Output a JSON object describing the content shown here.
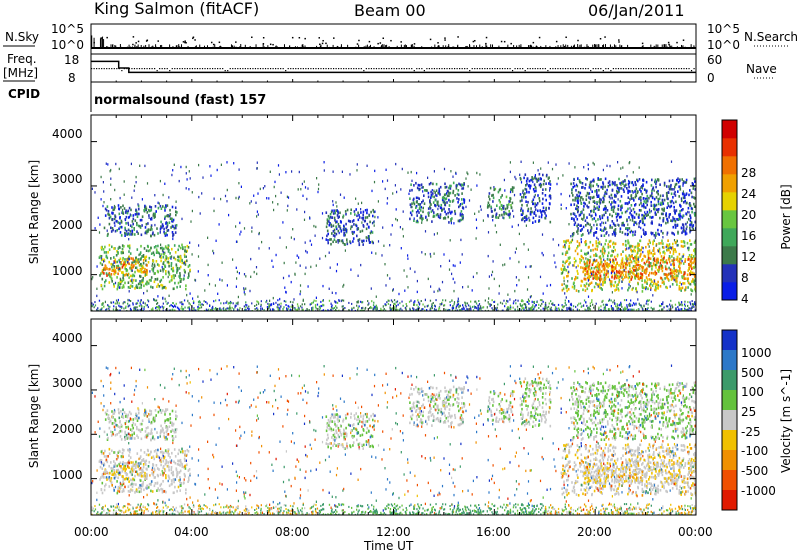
{
  "header": {
    "title": "King Salmon (fitACF)",
    "beam": "Beam 00",
    "date": "06/Jan/2011"
  },
  "noise_panel": {
    "left_label": "N.Sky",
    "right_label": "N.Search",
    "left_ticks": [
      "10^5",
      "10^0"
    ],
    "right_ticks": [
      "10^5",
      "10^0"
    ]
  },
  "freq_panel": {
    "left_label": "Freq.",
    "left_unit": "[MHz]",
    "right_label": "Nave",
    "left_ticks": [
      "18",
      "8"
    ],
    "right_ticks": [
      "60",
      "0"
    ],
    "freq_series": [
      {
        "t": 0.0,
        "f": 16
      },
      {
        "t": 1.1,
        "f": 16
      },
      {
        "t": 1.1,
        "f": 13
      },
      {
        "t": 1.5,
        "f": 13
      },
      {
        "t": 1.5,
        "f": 11
      },
      {
        "t": 24.0,
        "f": 11
      }
    ]
  },
  "cpid": {
    "label": "CPID",
    "program": "normalsound (fast) 157"
  },
  "x_axis": {
    "label": "Time UT",
    "ticks": [
      "00:00",
      "04:00",
      "08:00",
      "12:00",
      "16:00",
      "20:00",
      "00:00"
    ],
    "range_hours": [
      0,
      24
    ]
  },
  "y_axis": {
    "label": "Slant Range [km]",
    "ticks": [
      "1000",
      "2000",
      "3000",
      "4000"
    ],
    "range_km": [
      180,
      4600
    ]
  },
  "power_colorbar": {
    "label": "Power [dB]",
    "ticks": [
      "4",
      "8",
      "12",
      "16",
      "20",
      "24",
      "28"
    ],
    "colors": [
      "#0a1ee6",
      "#2432b8",
      "#3c7a4a",
      "#3fa85a",
      "#68c640",
      "#e6d200",
      "#f0a000",
      "#f07000",
      "#e83000",
      "#d00000"
    ]
  },
  "velocity_colorbar": {
    "label": "Velocity [m s^-1]",
    "ticks": [
      "1000",
      "500",
      "100",
      "25",
      "-25",
      "-100",
      "-500",
      "-1000"
    ],
    "colors": [
      "#1432c8",
      "#2c78c8",
      "#3c9a6a",
      "#64c23c",
      "#c8c8c8",
      "#f0c000",
      "#f09000",
      "#f05000",
      "#e01a00"
    ]
  },
  "chart_data": {
    "type": "heatmap",
    "title": "King Salmon (fitACF)",
    "xlabel": "Time UT",
    "ylabel": "Slant Range [km]",
    "xlim": [
      0,
      24
    ],
    "ylim": [
      180,
      4600
    ],
    "scatter_regions": [
      {
        "t0": 0.3,
        "t1": 3.9,
        "r0": 700,
        "r1": 1700,
        "power_db": 14,
        "velocity": 0
      },
      {
        "t0": 0.4,
        "t1": 2.2,
        "r0": 1000,
        "r1": 1400,
        "power_db": 22,
        "velocity": -20
      },
      {
        "t0": 0.5,
        "t1": 3.4,
        "r0": 1900,
        "r1": 2600,
        "power_db": 8,
        "velocity": 10
      },
      {
        "t0": 9.3,
        "t1": 11.2,
        "r0": 1700,
        "r1": 2500,
        "power_db": 7,
        "velocity": 15
      },
      {
        "t0": 12.6,
        "t1": 14.8,
        "r0": 2200,
        "r1": 3100,
        "power_db": 9,
        "velocity": 5
      },
      {
        "t0": 15.7,
        "t1": 16.7,
        "r0": 2300,
        "r1": 3000,
        "power_db": 10,
        "velocity": 10
      },
      {
        "t0": 17.0,
        "t1": 18.2,
        "r0": 2200,
        "r1": 3300,
        "power_db": 6,
        "velocity": 20
      },
      {
        "t0": 18.6,
        "t1": 24.0,
        "r0": 650,
        "r1": 1800,
        "power_db": 18,
        "velocity": -10
      },
      {
        "t0": 19.5,
        "t1": 24.0,
        "r0": 900,
        "r1": 1400,
        "power_db": 24,
        "velocity": -15
      },
      {
        "t0": 19.0,
        "t1": 24.0,
        "r0": 1900,
        "r1": 3200,
        "power_db": 7,
        "velocity": 30
      }
    ],
    "ground_scatter_band": {
      "t0": 0,
      "t1": 24,
      "r0": 180,
      "r1": 450
    }
  }
}
